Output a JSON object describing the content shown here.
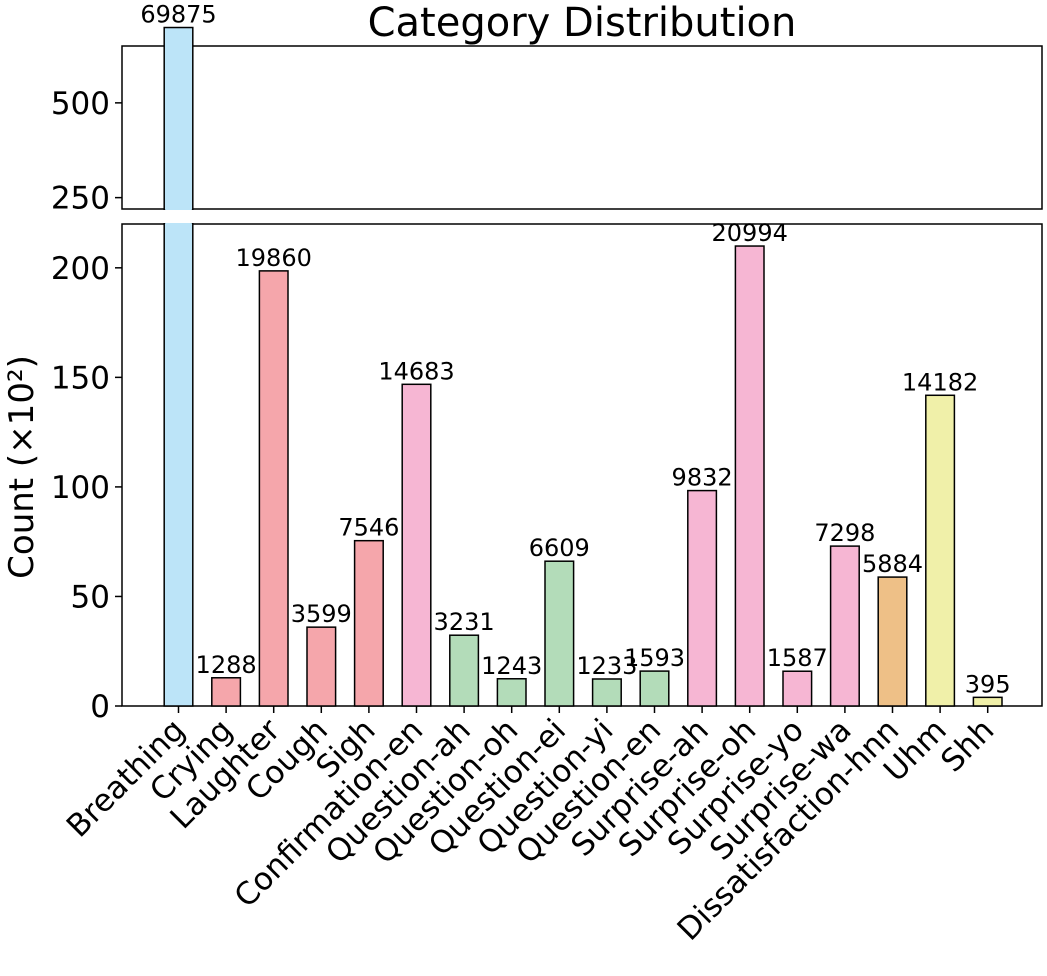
{
  "chart_data": {
    "type": "bar",
    "title": "Category Distribution",
    "xlabel": "",
    "ylabel": "Count (×10²)",
    "categories": [
      "Breathing",
      "Crying",
      "Laughter",
      "Cough",
      "Sigh",
      "Confirmation-en",
      "Question-ah",
      "Question-oh",
      "Question-ei",
      "Question-yi",
      "Question-en",
      "Surprise-ah",
      "Surprise-oh",
      "Surprise-yo",
      "Surprise-wa",
      "Dissatisfaction-hnn",
      "Uhm",
      "Shh"
    ],
    "values": [
      698.75,
      12.88,
      198.6,
      35.99,
      75.46,
      146.83,
      32.31,
      12.43,
      66.09,
      12.33,
      15.93,
      98.32,
      209.94,
      15.87,
      72.98,
      58.84,
      141.82,
      3.95
    ],
    "data_labels": [
      "69875",
      "1288",
      "19860",
      "3599",
      "7546",
      "14683",
      "3231",
      "1243",
      "6609",
      "1233",
      "1593",
      "9832",
      "20994",
      "1587",
      "7298",
      "5884",
      "14182",
      "395"
    ],
    "colors": [
      "#bce4f8",
      "#f5a6ab",
      "#f5a6ab",
      "#f5a6ab",
      "#f5a6ab",
      "#f6b6d3",
      "#b3dcb9",
      "#b3dcb9",
      "#b3dcb9",
      "#b3dcb9",
      "#b3dcb9",
      "#f6b6d3",
      "#f6b6d3",
      "#f6b6d3",
      "#f6b6d3",
      "#eec087",
      "#f0f0a9",
      "#f0f0a9"
    ],
    "axis_break": true,
    "ylim_lower": [
      0,
      220
    ],
    "ylim_upper": [
      220,
      650
    ],
    "yticks_lower": [
      0,
      50,
      100,
      150,
      200
    ],
    "yticks_upper": [
      250,
      500
    ],
    "grid": false,
    "legend": "none"
  }
}
